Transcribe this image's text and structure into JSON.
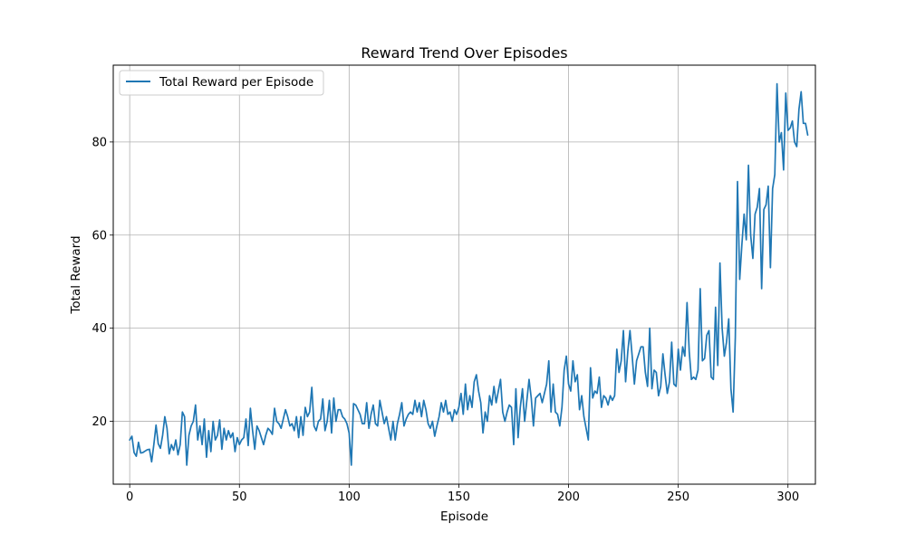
{
  "chart_data": {
    "type": "line",
    "title": "Reward Trend Over Episodes",
    "xlabel": "Episode",
    "ylabel": "Total Reward",
    "xlim": [
      -7.5,
      312.5
    ],
    "ylim": [
      6.5,
      96.5
    ],
    "xticks": [
      0,
      50,
      100,
      150,
      200,
      250,
      300
    ],
    "yticks": [
      20,
      40,
      60,
      80
    ],
    "grid": true,
    "legend_position": "top-left",
    "series": [
      {
        "name": "Total Reward per Episode",
        "color": "#1f77b4",
        "x_start": 0,
        "x_step": 1,
        "values": [
          16.0,
          16.8,
          13.3,
          12.5,
          15.5,
          13.2,
          13.3,
          13.6,
          13.9,
          14.0,
          11.3,
          15.0,
          19.2,
          15.2,
          14.2,
          17.0,
          21.0,
          18.5,
          13.0,
          15.0,
          13.8,
          16.0,
          12.8,
          15.0,
          22.0,
          21.0,
          10.6,
          17.0,
          19.0,
          20.0,
          23.5,
          16.0,
          19.0,
          15.0,
          20.5,
          12.3,
          18.0,
          13.5,
          20.0,
          16.0,
          17.0,
          20.3,
          14.0,
          18.5,
          16.0,
          18.0,
          16.5,
          17.5,
          13.5,
          16.5,
          15.0,
          16.0,
          16.5,
          20.5,
          14.8,
          22.8,
          18.0,
          14.0,
          19.0,
          18.0,
          16.5,
          15.0,
          17.0,
          18.5,
          18.0,
          17.2,
          22.8,
          20.0,
          19.5,
          18.5,
          20.5,
          22.5,
          21.0,
          19.0,
          19.5,
          18.0,
          21.0,
          16.5,
          21.0,
          17.0,
          23.0,
          21.0,
          22.0,
          27.3,
          19.0,
          18.0,
          20.0,
          20.5,
          24.8,
          18.0,
          20.0,
          24.5,
          17.5,
          25.0,
          20.0,
          22.5,
          22.5,
          21.0,
          20.5,
          19.5,
          17.5,
          10.6,
          23.8,
          23.5,
          22.5,
          21.5,
          19.5,
          19.5,
          24.0,
          18.5,
          21.5,
          23.5,
          19.5,
          19.0,
          24.5,
          22.0,
          19.5,
          21.0,
          18.5,
          16.0,
          20.0,
          16.0,
          19.5,
          21.5,
          24.0,
          19.0,
          20.5,
          21.5,
          22.0,
          21.5,
          24.5,
          22.0,
          24.0,
          21.0,
          24.5,
          22.5,
          19.5,
          18.5,
          20.0,
          16.8,
          19.0,
          21.0,
          24.0,
          22.0,
          24.5,
          21.5,
          22.0,
          20.0,
          22.5,
          21.5,
          23.0,
          26.0,
          21.5,
          28.0,
          22.5,
          25.5,
          23.0,
          28.5,
          30.0,
          26.5,
          24.0,
          17.5,
          22.0,
          20.0,
          25.5,
          23.5,
          27.5,
          24.0,
          26.5,
          29.0,
          22.0,
          20.0,
          22.0,
          23.5,
          23.0,
          15.0,
          27.0,
          16.5,
          23.0,
          27.0,
          20.0,
          24.5,
          29.0,
          25.0,
          19.0,
          25.0,
          25.5,
          26.0,
          24.0,
          26.0,
          28.0,
          33.0,
          22.0,
          28.0,
          22.0,
          21.5,
          19.0,
          23.0,
          31.0,
          34.0,
          28.0,
          26.5,
          33.0,
          28.5,
          30.0,
          22.5,
          25.5,
          21.0,
          18.5,
          16.0,
          31.5,
          25.0,
          26.5,
          26.0,
          29.5,
          23.0,
          25.5,
          25.0,
          23.5,
          25.5,
          24.5,
          25.5,
          35.5,
          30.5,
          33.0,
          39.5,
          28.5,
          35.0,
          39.5,
          34.0,
          28.0,
          33.0,
          34.5,
          36.0,
          36.0,
          30.5,
          27.5,
          40.0,
          27.0,
          31.0,
          30.5,
          25.5,
          27.5,
          34.5,
          30.0,
          26.0,
          28.5,
          37.0,
          28.0,
          27.5,
          35.5,
          31.0,
          36.0,
          34.0,
          45.5,
          35.0,
          29.0,
          29.5,
          29.0,
          31.0,
          48.5,
          33.0,
          33.5,
          38.5,
          39.5,
          29.5,
          29.0,
          44.5,
          32.0,
          54.0,
          40.0,
          34.0,
          37.0,
          42.0,
          27.0,
          22.0,
          38.0,
          71.5,
          50.5,
          58.0,
          64.5,
          59.0,
          75.0,
          60.0,
          55.0,
          64.5,
          66.0,
          70.0,
          48.5,
          65.5,
          66.5,
          70.5,
          53.0,
          70.0,
          73.0,
          92.5,
          80.0,
          82.0,
          74.0,
          90.5,
          82.5,
          83.0,
          84.5,
          80.0,
          79.0,
          87.0,
          90.8,
          84.0,
          84.0,
          81.5
        ]
      }
    ]
  }
}
